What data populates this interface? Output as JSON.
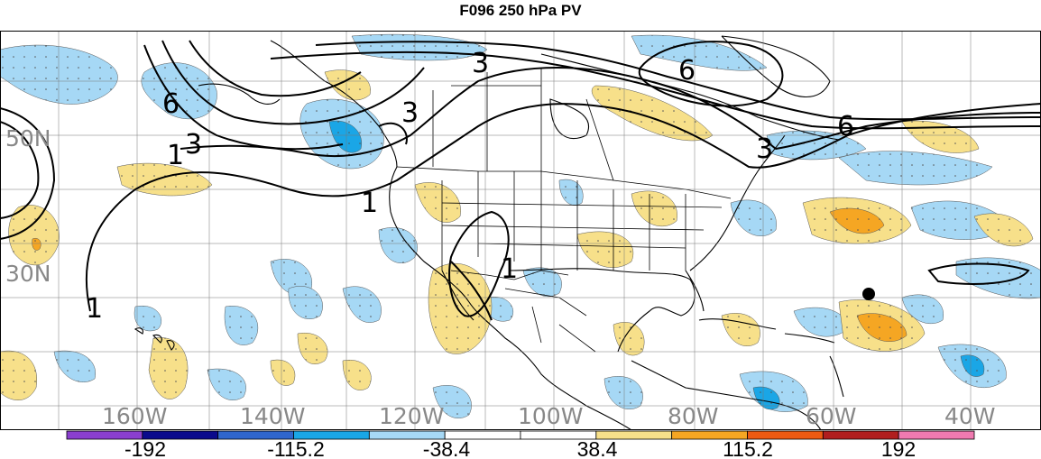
{
  "title": "F096 250 hPa PV",
  "latitude_labels": [
    "50N",
    "30N"
  ],
  "longitude_labels": [
    "160W",
    "140W",
    "120W",
    "100W",
    "80W",
    "60W",
    "40W"
  ],
  "contour_labels": [
    "1",
    "3",
    "6"
  ],
  "colorbar": {
    "tick_labels": [
      "-192",
      "-115.2",
      "-38.4",
      "38.4",
      "115.2",
      "192"
    ],
    "colors": [
      "#8a3fcf",
      "#0a0a8c",
      "#2f66cc",
      "#1aa6e6",
      "#a6d8f5",
      "#ffffff",
      "#ffffff",
      "#f7e08a",
      "#f5a623",
      "#ee5a12",
      "#b01e1e",
      "#f07ab0"
    ]
  },
  "colors": {
    "light_blue": "#a6d8f5",
    "mid_blue": "#1aa6e6",
    "light_yellow": "#f7e08a",
    "orange": "#f5a623"
  }
}
